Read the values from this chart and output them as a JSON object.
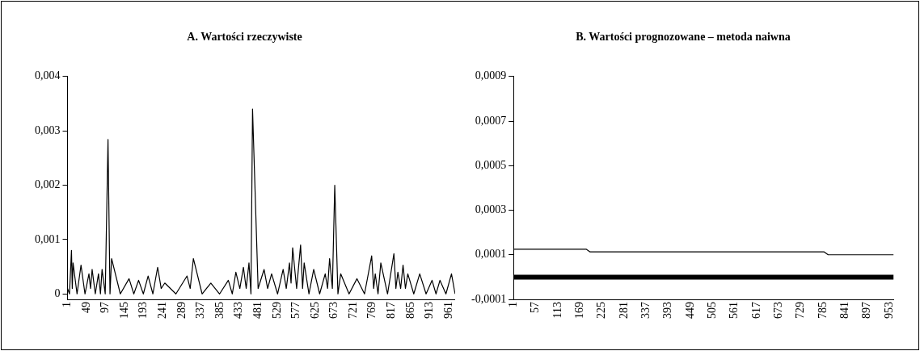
{
  "chart_data": [
    {
      "type": "line",
      "title": "A. Wartości rzeczywiste",
      "xlim": [
        1,
        977
      ],
      "xticks": [
        1,
        49,
        97,
        145,
        193,
        241,
        289,
        337,
        385,
        433,
        481,
        529,
        577,
        625,
        673,
        721,
        769,
        817,
        865,
        913,
        961
      ],
      "ylim": [
        -0.0001,
        0.004
      ],
      "yticks": [
        {
          "value": 0,
          "label": "0"
        },
        {
          "value": 0.001,
          "label": "0,001"
        },
        {
          "value": 0.002,
          "label": "0,002"
        },
        {
          "value": 0.003,
          "label": "0,003"
        },
        {
          "value": 0.004,
          "label": "0,004"
        }
      ],
      "grid": false,
      "legend": false,
      "marker": "none",
      "series": [
        {
          "color": "#000000",
          "x": [
            1,
            6,
            11,
            13,
            15,
            25,
            35,
            45,
            55,
            59,
            63,
            71,
            79,
            84,
            88,
            96,
            103,
            108,
            112,
            134,
            156,
            168,
            180,
            192,
            204,
            216,
            228,
            237,
            246,
            274,
            302,
            310,
            318,
            340,
            362,
            384,
            406,
            416,
            425,
            435,
            444,
            451,
            458,
            463,
            467,
            481,
            496,
            505,
            515,
            530,
            544,
            552,
            560,
            564,
            568,
            578,
            588,
            593,
            597,
            609,
            621,
            636,
            650,
            656,
            661,
            668,
            674,
            682,
            689,
            710,
            730,
            749,
            767,
            772,
            776,
            783,
            790,
            807,
            823,
            828,
            833,
            840,
            846,
            852,
            858,
            873,
            888,
            904,
            919,
            929,
            939,
            954,
            968,
            977
          ],
          "values": [
            0.0001,
            0,
            0.0008,
            0.0001,
            0.00057,
            0,
            0.00053,
            0,
            0.00037,
            0.0001,
            0.00045,
            0,
            0.00037,
            0,
            0.00045,
            0,
            0.00284,
            0,
            0.00065,
            0,
            0.00028,
            0,
            0.00025,
            0,
            0.00033,
            0,
            0.00049,
            0.0001,
            0.0002,
            0,
            0.00033,
            0.0001,
            0.00065,
            0,
            0.0002,
            0,
            0.00025,
            0,
            0.0004,
            0.0001,
            0.00049,
            0.0001,
            0.00057,
            0,
            0.0034,
            0.0001,
            0.00045,
            0.0001,
            0.00037,
            0,
            0.00045,
            0.0001,
            0.00057,
            0.0002,
            0.00085,
            0.0001,
            0.0009,
            0.0001,
            0.00057,
            0,
            0.00045,
            0,
            0.00037,
            0.0001,
            0.00065,
            0.0001,
            0.002,
            0,
            0.00037,
            0,
            0.00028,
            0,
            0.0007,
            0.0001,
            0.00037,
            0,
            0.00057,
            0,
            0.00074,
            0.0001,
            0.0004,
            0.0001,
            0.00053,
            0.0001,
            0.00037,
            0,
            0.00037,
            0,
            0.00025,
            0,
            0.00025,
            0,
            0.00037,
            0
          ]
        }
      ]
    },
    {
      "type": "line",
      "title": "B. Wartości prognozowane – metoda naiwna",
      "xlim": [
        1,
        964
      ],
      "xticks": [
        1,
        57,
        113,
        169,
        225,
        281,
        337,
        393,
        449,
        505,
        561,
        617,
        673,
        729,
        785,
        841,
        897,
        953
      ],
      "ylim": [
        -0.0001,
        0.0009
      ],
      "yticks": [
        {
          "value": -0.0001,
          "label": "-0,0001"
        },
        {
          "value": 0.0001,
          "label": "0,0001"
        },
        {
          "value": 0.0003,
          "label": "0,0003"
        },
        {
          "value": 0.0005,
          "label": "0,0005"
        },
        {
          "value": 0.0007,
          "label": "0,0007"
        },
        {
          "value": 0.0009,
          "label": "0,0009"
        }
      ],
      "grid": false,
      "legend": false,
      "marker": "none",
      "series": [
        {
          "color": "#000000",
          "x": [
            1,
            185,
            195,
            788,
            798,
            964
          ],
          "values": [
            0.000125,
            0.000125,
            0.000113,
            0.000113,
            0.0001,
            0.0001
          ]
        },
        {
          "color": "#000000",
          "x": [
            1,
            964
          ],
          "values": [
            0,
            0
          ]
        }
      ]
    }
  ]
}
